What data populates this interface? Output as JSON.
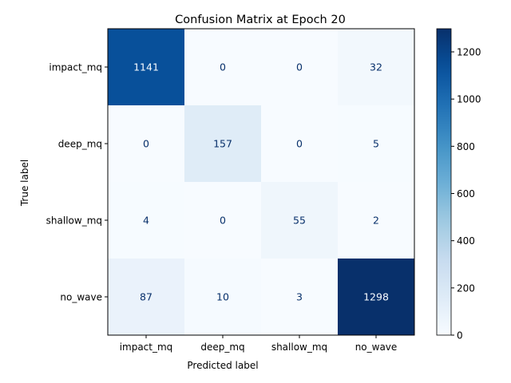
{
  "chart_data": {
    "type": "heatmap",
    "title": "Confusion Matrix at Epoch 20",
    "xlabel": "Predicted label",
    "ylabel": "True label",
    "x_categories": [
      "impact_mq",
      "deep_mq",
      "shallow_mq",
      "no_wave"
    ],
    "y_categories": [
      "impact_mq",
      "deep_mq",
      "shallow_mq",
      "no_wave"
    ],
    "values": [
      [
        1141,
        0,
        0,
        32
      ],
      [
        0,
        157,
        0,
        5
      ],
      [
        4,
        0,
        55,
        2
      ],
      [
        87,
        10,
        3,
        1298
      ]
    ],
    "colormap": "Blues",
    "color_range": [
      0,
      1298
    ],
    "colorbar_ticks": [
      0,
      200,
      400,
      600,
      800,
      1000,
      1200
    ],
    "grid": false
  }
}
